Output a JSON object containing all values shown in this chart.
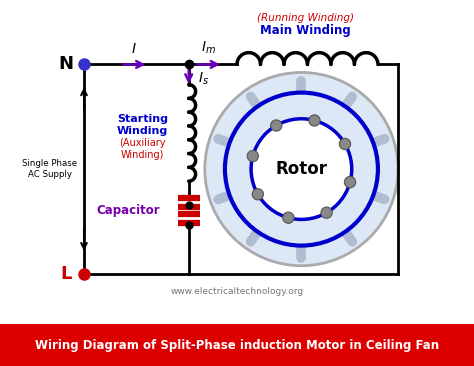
{
  "bg_color": "#ffffff",
  "title": "Wiring Diagram of Split-Phase induction Motor in Ceiling Fan",
  "title_bg": "#dd0000",
  "title_color": "#ffffff",
  "website": "www.electricaltechnology.org",
  "N_label": "N",
  "L_label": "L",
  "I_label": "I",
  "Im_label": "I_m",
  "Is_label": "I_s",
  "supply_label": "Single Phase\nAC Supply",
  "starting_winding_label": "Starting\nWinding",
  "auxiliary_winding_label": "(Auxiliary\nWinding)",
  "capacitor_label": "Capacitor",
  "rotor_label": "Rotor",
  "running_winding_label": "(Running Winding)",
  "main_winding_label": "Main Winding",
  "wire_color": "#000000",
  "N_color": "#3333cc",
  "L_color": "#cc0000",
  "arrow_color": "#6600bb",
  "starting_winding_color": "#0000cc",
  "capacitor_color": "#cc0000",
  "rotor_outer_color": "#0000cc",
  "rotor_inner_color": "#0000cc",
  "running_winding_label_color": "#cc0000",
  "main_winding_label_color": "#0000cc",
  "capacitor_label_color": "#7700aa",
  "stator_bg_color": "#dde8ff",
  "stator_blade_color": "#c0c8d8"
}
